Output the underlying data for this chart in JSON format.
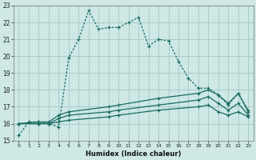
{
  "xlabel": "Humidex (Indice chaleur)",
  "xlim": [
    -0.5,
    23.5
  ],
  "ylim": [
    15,
    23
  ],
  "yticks": [
    15,
    16,
    17,
    18,
    19,
    20,
    21,
    22,
    23
  ],
  "xticks": [
    0,
    1,
    2,
    3,
    4,
    5,
    6,
    7,
    8,
    9,
    10,
    11,
    12,
    13,
    14,
    15,
    16,
    17,
    18,
    19,
    20,
    21,
    22,
    23
  ],
  "background_color": "#cde8e5",
  "grid_color": "#a8ccc9",
  "line_color": "#1a6b62",
  "line1_x": [
    0,
    1,
    2,
    3,
    4,
    5,
    6,
    7,
    8,
    9,
    10,
    11,
    12,
    13,
    14,
    15,
    16,
    17,
    18,
    19,
    20,
    21,
    22,
    23
  ],
  "line1_y": [
    15.3,
    16.1,
    16.1,
    16.0,
    15.8,
    19.9,
    21.0,
    22.7,
    21.6,
    21.7,
    21.7,
    22.0,
    22.3,
    20.6,
    21.0,
    20.9,
    19.7,
    18.7,
    18.1,
    18.1,
    17.7,
    17.1,
    17.8,
    16.8
  ],
  "line2_x": [
    0,
    2,
    3,
    4,
    5,
    9,
    10,
    14,
    18,
    19,
    20,
    21,
    22,
    23
  ],
  "line2_y": [
    16.0,
    16.1,
    16.1,
    16.5,
    16.7,
    17.0,
    17.1,
    17.5,
    17.8,
    18.0,
    17.7,
    17.2,
    17.8,
    16.7
  ],
  "line3_x": [
    0,
    2,
    3,
    4,
    5,
    9,
    10,
    14,
    18,
    19,
    20,
    21,
    22,
    23
  ],
  "line3_y": [
    16.0,
    16.0,
    16.0,
    16.3,
    16.5,
    16.7,
    16.8,
    17.1,
    17.4,
    17.6,
    17.2,
    16.8,
    17.2,
    16.5
  ],
  "line4_x": [
    0,
    2,
    3,
    4,
    5,
    9,
    10,
    14,
    18,
    19,
    20,
    21,
    22,
    23
  ],
  "line4_y": [
    16.0,
    16.0,
    16.0,
    16.1,
    16.2,
    16.4,
    16.5,
    16.8,
    17.0,
    17.1,
    16.7,
    16.5,
    16.7,
    16.4
  ]
}
